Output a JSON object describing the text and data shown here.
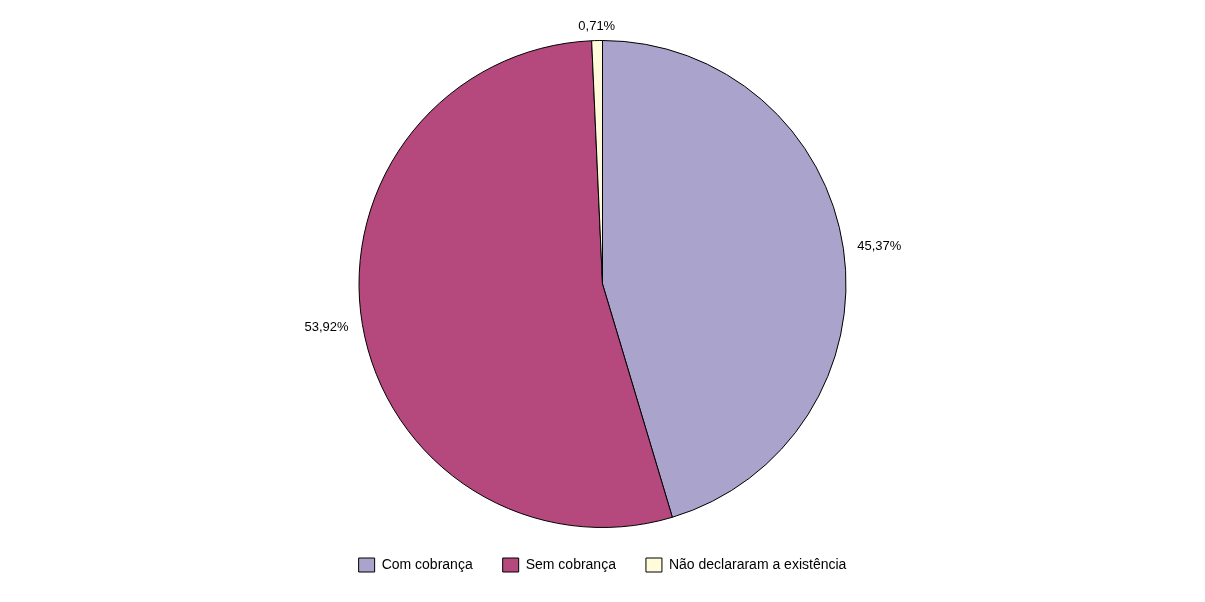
{
  "chart_data": {
    "type": "pie",
    "categories": [
      "Com cobrança",
      "Sem cobrança",
      "Não declararam a existência"
    ],
    "values": [
      45.37,
      53.92,
      0.71
    ],
    "colors": [
      "#aaa3cc",
      "#b5487d",
      "#fffbdb"
    ],
    "value_labels": [
      "45,37%",
      "53,92%",
      "0,71%"
    ],
    "legend": "bottom"
  }
}
